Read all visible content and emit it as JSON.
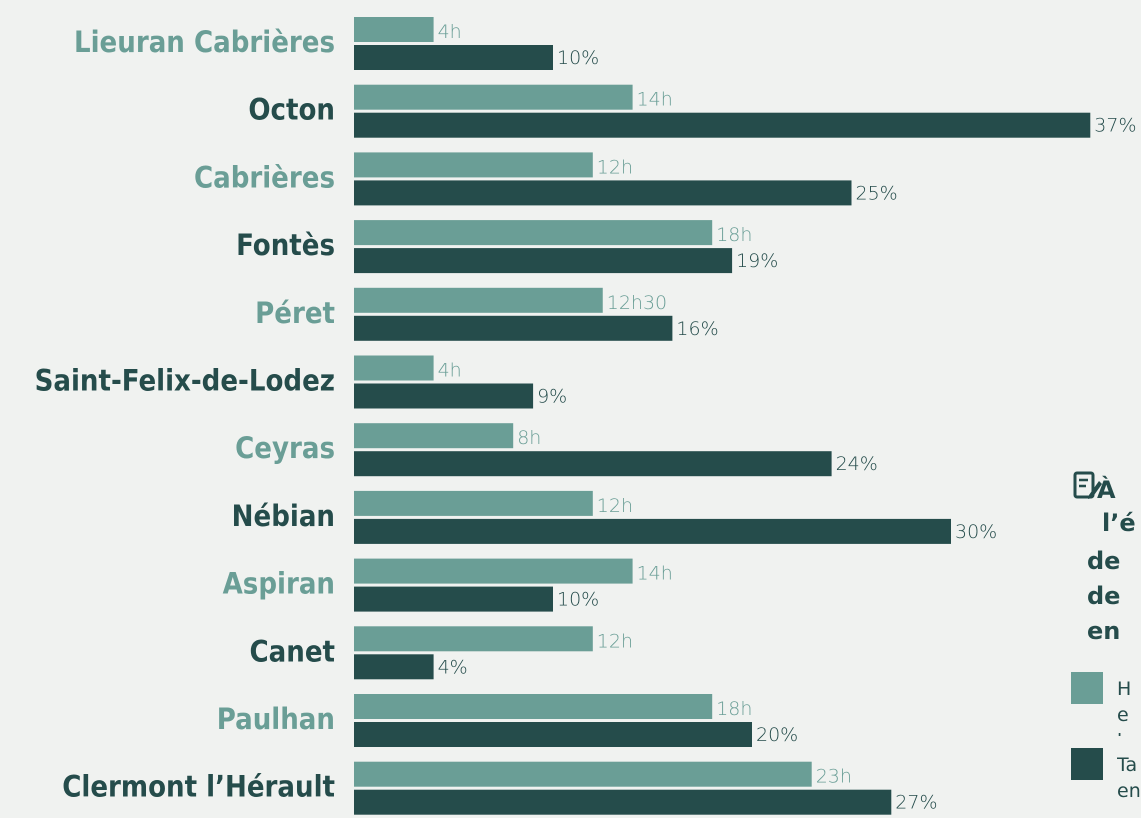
{
  "chart_data": {
    "type": "bar",
    "orientation": "horizontal",
    "categories": [
      "Lieuran Cabrières",
      "Octon",
      "Cabrières",
      "Fontès",
      "Péret",
      "Saint-Felix-de-Lodez",
      "Ceyras",
      "Nébian",
      "Aspiran",
      "Canet",
      "Paulhan",
      "Clermont l’Hérault"
    ],
    "category_colors": [
      "#6a9e96",
      "#254c4b",
      "#6a9e96",
      "#254c4b",
      "#6a9e96",
      "#254c4b",
      "#6a9e96",
      "#254c4b",
      "#6a9e96",
      "#254c4b",
      "#6a9e96",
      "#254c4b"
    ],
    "series": [
      {
        "name": "He he",
        "color": "#6a9e96",
        "values": [
          4,
          14,
          12,
          18,
          12.5,
          4,
          8,
          12,
          14,
          12,
          18,
          23
        ],
        "value_labels": [
          "4h",
          "14h",
          "12h",
          "18h",
          "12h30",
          "4h",
          "8h",
          "12h",
          "14h",
          "12h",
          "18h",
          "23h"
        ]
      },
      {
        "name": "Ta en",
        "color": "#254c4b",
        "values": [
          10,
          37,
          25,
          19,
          16,
          9,
          24,
          30,
          10,
          4,
          20,
          27
        ],
        "value_labels": [
          "10%",
          "37%",
          "25%",
          "19%",
          "16%",
          "9%",
          "24%",
          "30%",
          "10%",
          "4%",
          "20%",
          "27%"
        ]
      }
    ],
    "note": [
      "À",
      "l’é",
      "de",
      "de",
      "en"
    ]
  }
}
